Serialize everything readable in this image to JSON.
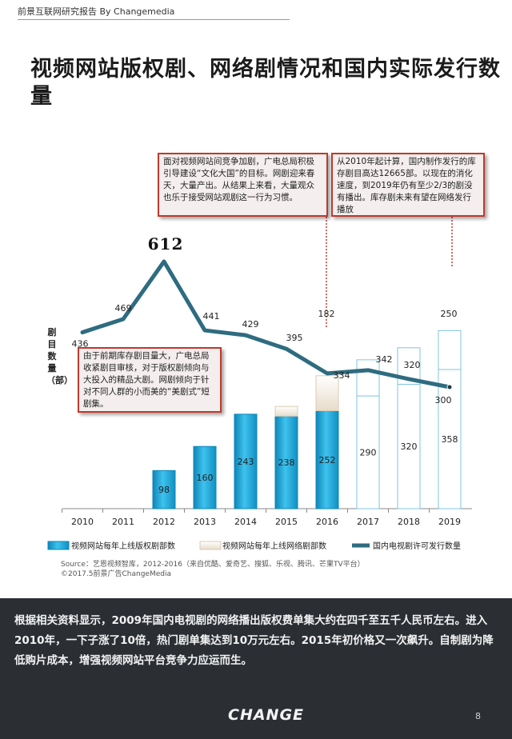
{
  "header": {
    "text": "前景互联网研究报告  By Changemedia"
  },
  "title": "视频网站版权剧、网络剧情况和国内实际发行数量",
  "chart_data": {
    "type": "bar+line",
    "categories": [
      "2010",
      "2011",
      "2012",
      "2013",
      "2014",
      "2015",
      "2016",
      "2017",
      "2018",
      "2019"
    ],
    "ylabel": "剧目数量（部）",
    "series": [
      {
        "name": "视频网站每年上线版权剧部数",
        "type": "bar",
        "values": [
          null,
          null,
          98,
          160,
          243,
          238,
          252,
          290,
          320,
          358
        ]
      },
      {
        "name": "视频网站每年上线网络剧部数",
        "type": "bar-stacked",
        "values": [
          null,
          null,
          null,
          null,
          null,
          25,
          90,
          93,
          94,
          100
        ]
      },
      {
        "name": "国内电视剧许可发行数量",
        "type": "line",
        "values": [
          436,
          469,
          612,
          441,
          429,
          395,
          334,
          342,
          320,
          300
        ]
      }
    ],
    "extra_labels": [
      {
        "text": "182"
      },
      {
        "text": "250"
      }
    ],
    "highlight_label": "612"
  },
  "notes": {
    "top_left": "面对视频网站间竞争加剧，广电总局积极引导建设“文化大国”的目标。网剧迎来春天，大量产出。从结果上来看，大量观众也乐于接受网站观剧这一行为习惯。",
    "top_right": "从2010年起计算，国内制作发行的库存剧目高达12665部。以现在的消化速度，到2019年仍有至少2/3的剧没有播出。库存剧未来有望在网络发行播放",
    "mid_left": "由于前期库存剧目量大，广电总局收紧剧目审核，对于版权剧倾向与大投入的精品大剧。网剧倾向于针对不同人群的小而美的“美剧式”短剧集。"
  },
  "source": {
    "line1": "Source：艺恩视频智库，2012-2016（来自优酷、爱奇艺、搜狐、乐视、腾讯、芒果TV平台）",
    "line2": "©2017.5前景广告ChangeMedia"
  },
  "summary": "根据相关资料显示，2009年国内电视剧的网络播出版权费单集大约在四千至五千人民币左右。进入2010年，一下子涨了10倍，热门剧单集达到10万元左右。2015年初价格又一次飙升。自制剧为降低购片成本，增强视频网站平台竞争力应运而生。",
  "footer": {
    "logo": "CHANGE",
    "page": "8"
  },
  "colors": {
    "accent_blue": "#1aa6d8",
    "line_teal": "#2e6c80",
    "note_border": "#c0392b",
    "panel_bg": "#2b2f34"
  }
}
